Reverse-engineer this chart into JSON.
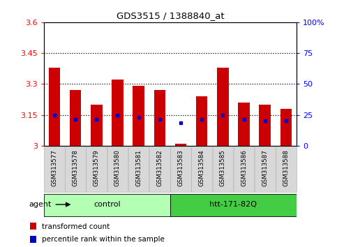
{
  "title": "GDS3515 / 1388840_at",
  "samples": [
    "GSM313577",
    "GSM313578",
    "GSM313579",
    "GSM313580",
    "GSM313581",
    "GSM313582",
    "GSM313583",
    "GSM313584",
    "GSM313585",
    "GSM313586",
    "GSM313587",
    "GSM313588"
  ],
  "bar_values": [
    3.38,
    3.27,
    3.2,
    3.32,
    3.29,
    3.27,
    3.01,
    3.24,
    3.38,
    3.21,
    3.2,
    3.18
  ],
  "blue_dot_values": [
    3.15,
    3.13,
    3.13,
    3.15,
    3.14,
    3.13,
    3.11,
    3.13,
    3.15,
    3.13,
    3.12,
    3.12
  ],
  "ylim_left": [
    3.0,
    3.6
  ],
  "ylim_right": [
    0,
    100
  ],
  "yticks_left": [
    3.0,
    3.15,
    3.3,
    3.45,
    3.6
  ],
  "yticks_right": [
    0,
    25,
    50,
    75,
    100
  ],
  "ytick_labels_left": [
    "3",
    "3.15",
    "3.3",
    "3.45",
    "3.6"
  ],
  "ytick_labels_right": [
    "0",
    "25",
    "50",
    "75",
    "100%"
  ],
  "hlines": [
    3.15,
    3.3,
    3.45
  ],
  "bar_color": "#cc0000",
  "dot_color": "#0000cc",
  "bar_bottom": 3.0,
  "groups": [
    {
      "label": "control",
      "start": 0,
      "end": 5,
      "color": "#b3ffb3"
    },
    {
      "label": "htt-171-82Q",
      "start": 6,
      "end": 11,
      "color": "#44cc44"
    }
  ],
  "agent_label": "agent",
  "legend_items": [
    {
      "color": "#cc0000",
      "label": "transformed count"
    },
    {
      "color": "#0000cc",
      "label": "percentile rank within the sample"
    }
  ],
  "sample_bg_color": "#d8d8d8",
  "sample_border_color": "#aaaaaa",
  "plot_bg": "#ffffff"
}
